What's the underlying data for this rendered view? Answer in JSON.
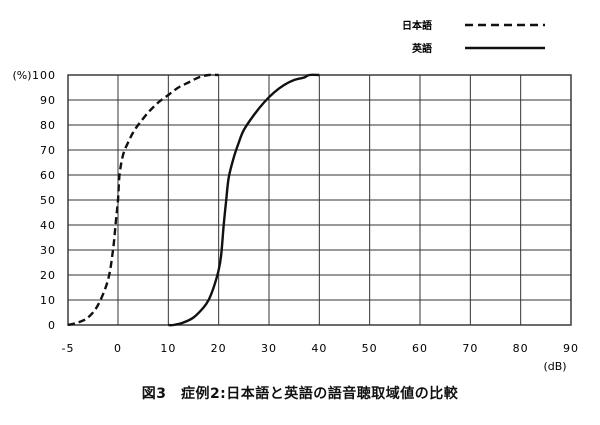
{
  "chart_data": {
    "type": "line",
    "caption": "図3　症例2:日本語と英語の語音聴取域値の比較",
    "ylabel": "(%)",
    "xlabel": "(dB)",
    "xlim": [
      -5,
      90
    ],
    "ylim": [
      0,
      100
    ],
    "x_ticks": [
      -5,
      0,
      10,
      20,
      30,
      40,
      50,
      60,
      70,
      80,
      90
    ],
    "x_tick_labels": [
      "-5",
      "0",
      "10",
      "20",
      "30",
      "40",
      "50",
      "60",
      "70",
      "80",
      "90"
    ],
    "y_ticks": [
      0,
      10,
      20,
      30,
      40,
      50,
      60,
      70,
      80,
      90,
      100
    ],
    "y_tick_labels": [
      "0",
      "10",
      "20",
      "30",
      "40",
      "50",
      "60",
      "70",
      "80",
      "90",
      "100"
    ],
    "grid": true,
    "legend_position": "top-right",
    "series": [
      {
        "name": "日本語",
        "style": "dashed",
        "color": "#111111",
        "x": [
          -5,
          -4,
          -3,
          -2,
          -1,
          -0.5,
          -0.2,
          0,
          0.3,
          1,
          2,
          3,
          4,
          6,
          8,
          10,
          12,
          14,
          16,
          18,
          20
        ],
        "y": [
          0,
          1,
          3,
          8,
          18,
          30,
          42,
          50,
          60,
          68,
          73,
          77,
          80,
          85,
          89,
          92,
          95,
          97,
          99,
          100,
          100
        ]
      },
      {
        "name": "英語",
        "style": "solid",
        "color": "#111111",
        "x": [
          10,
          11,
          13,
          15,
          17,
          18,
          19,
          20,
          20.5,
          21,
          21.5,
          22,
          23,
          24,
          25,
          27,
          29,
          31,
          33,
          35,
          37,
          38,
          40
        ],
        "y": [
          0,
          0,
          1,
          3,
          7,
          10,
          15,
          22,
          28,
          40,
          50,
          59,
          67,
          73,
          78,
          84,
          89,
          93,
          96,
          98,
          99,
          100,
          100
        ]
      }
    ]
  }
}
